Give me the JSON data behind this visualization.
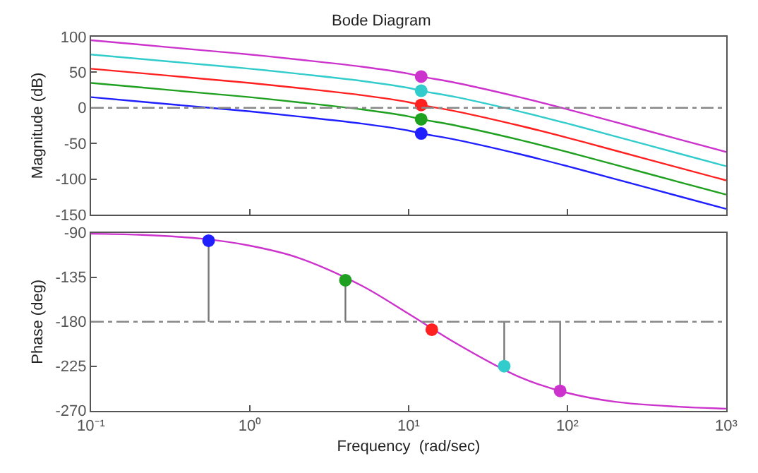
{
  "chart_data": [
    {
      "type": "line",
      "title": "Bode Diagram",
      "ylabel": "Magnitude (dB)",
      "log": "x",
      "tick_labels": "y",
      "xlim": [
        0.1,
        1000
      ],
      "xticks": [
        {
          "value": 0.1,
          "label": null
        },
        {
          "value": 1,
          "label": null
        },
        {
          "value": 10,
          "label": null
        },
        {
          "value": 100,
          "label": null
        },
        {
          "value": 1000,
          "label": null
        }
      ],
      "ylim": [
        -150,
        100
      ],
      "yticks": [
        -150,
        -100,
        -50,
        0,
        50,
        100
      ],
      "x": [
        0.1,
        0.2,
        0.5,
        1,
        2,
        5,
        10,
        12,
        20,
        50,
        100,
        200,
        500,
        1000
      ],
      "ref_lines": [
        {
          "axis": "y",
          "value": 0,
          "color": "#888888",
          "line_style": "dashdot"
        }
      ],
      "series": [
        {
          "color": "#cc33cc",
          "values": [
            95,
            89,
            81,
            75,
            68,
            58,
            48,
            44,
            35,
            15,
            -2,
            -20,
            -44,
            -62
          ]
        },
        {
          "color": "#33cccc",
          "values": [
            75,
            69,
            61,
            55,
            48,
            38,
            28,
            24,
            15,
            -5,
            -22,
            -40,
            -64,
            -82
          ]
        },
        {
          "color": "#ff2020",
          "values": [
            55,
            49,
            41,
            35,
            28,
            18,
            8,
            4,
            -5,
            -25,
            -42,
            -60,
            -84,
            -102
          ]
        },
        {
          "color": "#20a020",
          "values": [
            35,
            29,
            21,
            15,
            8,
            -2,
            -12,
            -16,
            -25,
            -45,
            -62,
            -80,
            -104,
            -122
          ]
        },
        {
          "color": "#2020ff",
          "values": [
            15,
            9,
            1,
            -5,
            -12,
            -22,
            -32,
            -36,
            -45,
            -65,
            -82,
            -100,
            -124,
            -142
          ]
        },
        {
          "type": "scatter",
          "marker": "circle",
          "x": [
            12,
            12,
            12,
            12,
            12
          ],
          "values": [
            44,
            24,
            4,
            -16,
            -36
          ],
          "colors": [
            "#cc33cc",
            "#33cccc",
            "#ff2020",
            "#20a020",
            "#2020ff"
          ]
        }
      ]
    },
    {
      "type": "line",
      "xlabel": "Frequency  (rad/sec)",
      "ylabel": "Phase (deg)",
      "log": "x",
      "xlim": [
        0.1,
        1000
      ],
      "xticks": [
        {
          "value": 0.1,
          "label": "10⁻¹"
        },
        {
          "value": 1,
          "label": "10⁰"
        },
        {
          "value": 10,
          "label": "10¹"
        },
        {
          "value": 100,
          "label": "10²"
        },
        {
          "value": 1000,
          "label": "10³"
        }
      ],
      "ylim": [
        -270,
        -90
      ],
      "yticks": [
        -270,
        -225,
        -180,
        -135,
        -90
      ],
      "x": [
        0.1,
        0.2,
        0.5,
        1,
        2,
        5,
        10,
        20,
        50,
        100,
        200,
        500,
        1000
      ],
      "ref_lines": [
        {
          "axis": "y",
          "value": -180,
          "color": "#888888",
          "line_style": "dashdot"
        }
      ],
      "series": [
        {
          "color": "#cc33cc",
          "values": [
            -91,
            -92,
            -96,
            -103,
            -115,
            -143,
            -172,
            -202,
            -236,
            -252,
            -261,
            -266,
            -268
          ]
        },
        {
          "color": "#777777",
          "x": [
            0.55,
            0.55
          ],
          "values": [
            -180,
            -98
          ]
        },
        {
          "color": "#777777",
          "x": [
            4,
            4
          ],
          "values": [
            -180,
            -138
          ]
        },
        {
          "color": "#777777",
          "x": [
            40,
            40
          ],
          "values": [
            -180,
            -225
          ]
        },
        {
          "color": "#777777",
          "x": [
            90,
            90
          ],
          "values": [
            -180,
            -250
          ]
        },
        {
          "type": "scatter",
          "marker": "circle",
          "x": [
            0.55,
            4,
            14,
            40,
            90
          ],
          "values": [
            -98,
            -138,
            -188,
            -225,
            -250
          ],
          "colors": [
            "#2020ff",
            "#20a020",
            "#ff2020",
            "#33cccc",
            "#cc33cc"
          ]
        }
      ]
    }
  ]
}
